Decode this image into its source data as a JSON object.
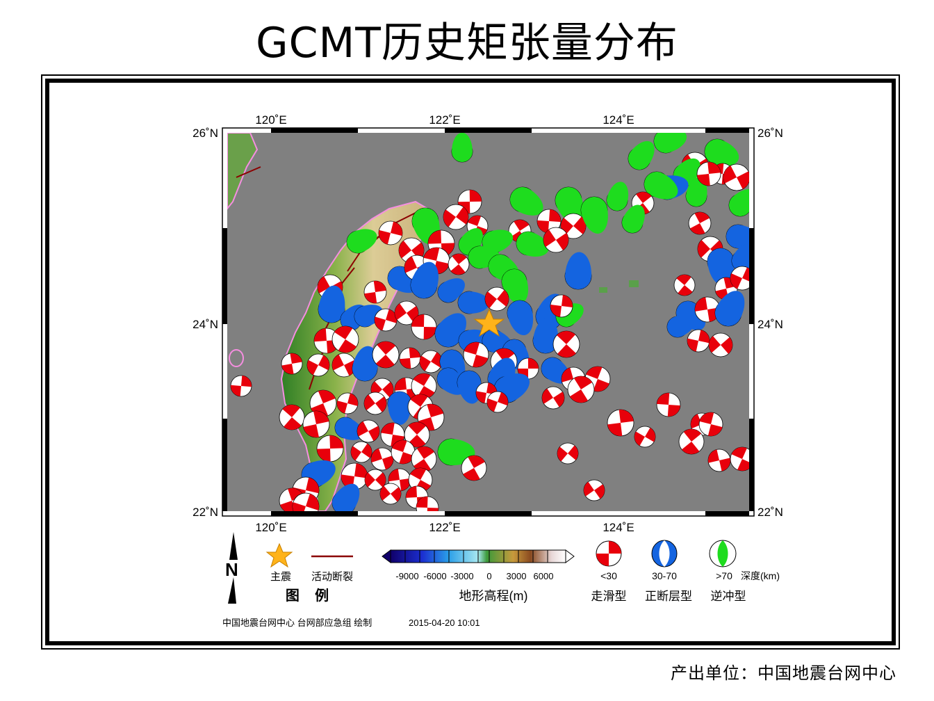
{
  "title": "GCMT历史矩张量分布",
  "credit": "产出单位：中国地震台网中心",
  "map": {
    "top_axis_labels": [
      "120˚E",
      "122˚E",
      "124˚E"
    ],
    "bottom_axis_labels": [
      "120˚E",
      "122˚E",
      "124˚E"
    ],
    "left_axis_labels": [
      "26˚N",
      "24˚N",
      "22˚N"
    ],
    "right_axis_labels": [
      "26˚N",
      "24˚N",
      "22˚N"
    ],
    "colors": {
      "ocean": "#808080",
      "land_low": "#3a8a2a",
      "land_high": "#d8c89a",
      "coast": "#f58ee0",
      "fault": "#8b0000",
      "strike_slip": "#e8000b",
      "normal": "#1464e0",
      "thrust": "#1edc1e",
      "star": "#ffb31a"
    }
  },
  "legend": {
    "caption": "图    例",
    "north_label": "N",
    "mainshock_label": "主震",
    "fault_label": "活动断裂",
    "elevation_ticks": [
      "-9000",
      "-6000",
      "-3000",
      "0",
      "3000",
      "6000"
    ],
    "elevation_title": "地形高程(m)",
    "depth_labels": [
      "<30",
      "30-70",
      ">70"
    ],
    "depth_unit": "深度(km)",
    "mechanism_labels": [
      "走滑型",
      "正断层型",
      "逆冲型"
    ]
  },
  "footer": {
    "org": "中国地震台网中心 台网部应急组 绘制",
    "datetime": "2015-04-20 10:01"
  }
}
